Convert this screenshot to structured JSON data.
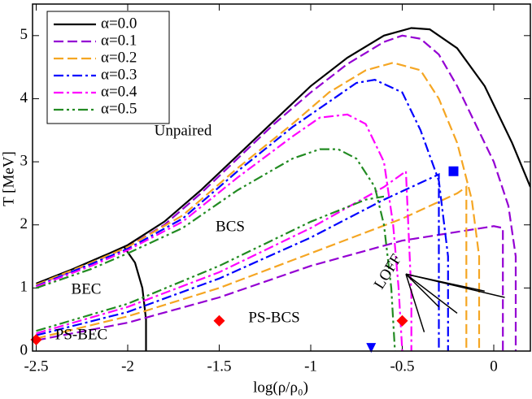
{
  "chart_data": {
    "type": "line",
    "x_label": "log(ρ/ρ₀)",
    "y_label": "T [MeV]",
    "xlim": [
      -2.52,
      0.2
    ],
    "ylim": [
      0,
      5.5
    ],
    "xticks": [
      -2.5,
      -2,
      -1.5,
      -1,
      -0.5,
      0
    ],
    "yticks": [
      0,
      1,
      2,
      3,
      4,
      5
    ],
    "legend": "upper left",
    "series": [
      {
        "name": "α=0.0",
        "color": "#000000",
        "style": "solid",
        "x": [
          -2.5,
          -2.3,
          -2.1,
          -2.0,
          -1.8,
          -1.6,
          -1.4,
          -1.2,
          -1.0,
          -0.8,
          -0.6,
          -0.45,
          -0.35,
          -0.2,
          -0.05,
          0.1,
          0.2,
          null,
          -2.02,
          -1.96,
          -1.92,
          -1.9,
          -1.9
        ],
        "values": [
          1.07,
          1.3,
          1.55,
          1.68,
          2.05,
          2.55,
          3.1,
          3.65,
          4.2,
          4.65,
          5.0,
          5.12,
          5.1,
          4.8,
          4.2,
          3.3,
          2.6,
          null,
          1.65,
          1.4,
          1.0,
          0.5,
          0
        ]
      },
      {
        "name": "α=0.1",
        "color": "#9400d3",
        "style": "dashed",
        "x": [
          -2.5,
          -2.3,
          -2.1,
          -2.0,
          -1.8,
          -1.6,
          -1.4,
          -1.2,
          -1.0,
          -0.8,
          -0.6,
          -0.5,
          -0.4,
          -0.3,
          -0.2,
          -0.1,
          0.0,
          0.08,
          0.12,
          0.12,
          null,
          -2.5,
          -2.0,
          -1.5,
          -1.0,
          -0.5,
          0,
          0.05,
          0.05
        ],
        "values": [
          1.05,
          1.27,
          1.52,
          1.65,
          2.0,
          2.5,
          3.05,
          3.6,
          4.1,
          4.55,
          4.9,
          5.0,
          4.95,
          4.7,
          4.2,
          3.6,
          3.0,
          2.3,
          1.5,
          0,
          null,
          0.17,
          0.45,
          0.85,
          1.35,
          1.75,
          1.98,
          1.95,
          0
        ]
      },
      {
        "name": "α=0.2",
        "color": "#f5a623",
        "style": "dashed",
        "x": [
          -2.5,
          -2.2,
          -2.0,
          -1.7,
          -1.4,
          -1.1,
          -0.9,
          -0.7,
          -0.55,
          -0.4,
          -0.3,
          -0.2,
          -0.12,
          -0.08,
          -0.08,
          null,
          -2.5,
          -2.0,
          -1.5,
          -1.0,
          -0.5,
          -0.2,
          -0.15,
          -0.15
        ],
        "values": [
          1.05,
          1.4,
          1.65,
          2.15,
          2.9,
          3.6,
          4.1,
          4.45,
          4.57,
          4.45,
          4.0,
          3.3,
          2.4,
          1.5,
          0,
          null,
          0.2,
          0.55,
          1.0,
          1.55,
          2.1,
          2.5,
          2.6,
          0
        ]
      },
      {
        "name": "α=0.3",
        "color": "#0000ff",
        "style": "dashdot",
        "x": [
          -2.5,
          -2.2,
          -2.0,
          -1.7,
          -1.4,
          -1.1,
          -0.9,
          -0.75,
          -0.65,
          -0.5,
          -0.4,
          -0.3,
          -0.25,
          -0.25,
          null,
          -2.5,
          -2.0,
          -1.5,
          -1.0,
          -0.6,
          -0.3,
          -0.3
        ],
        "values": [
          1.03,
          1.38,
          1.62,
          2.1,
          2.85,
          3.55,
          3.95,
          4.25,
          4.3,
          4.1,
          3.5,
          2.7,
          1.5,
          0,
          null,
          0.25,
          0.62,
          1.15,
          1.8,
          2.4,
          2.8,
          0
        ]
      },
      {
        "name": "α=0.4",
        "color": "#ff00ff",
        "style": "dashdot",
        "x": [
          -2.5,
          -2.2,
          -2.0,
          -1.7,
          -1.4,
          -1.1,
          -0.95,
          -0.8,
          -0.7,
          -0.6,
          -0.55,
          -0.52,
          -0.5,
          null,
          -2.5,
          -2.0,
          -1.5,
          -1.0,
          -0.6,
          -0.48,
          -0.45,
          -0.45
        ],
        "values": [
          1.02,
          1.35,
          1.6,
          2.05,
          2.75,
          3.4,
          3.7,
          3.75,
          3.6,
          3.0,
          2.0,
          1.0,
          0,
          null,
          0.28,
          0.7,
          1.25,
          1.95,
          2.6,
          2.85,
          0.9,
          0
        ]
      },
      {
        "name": "α=0.5",
        "color": "#228b22",
        "style": "dashdotdot",
        "x": [
          -2.5,
          -2.2,
          -2.0,
          -1.7,
          -1.4,
          -1.1,
          -0.95,
          -0.85,
          -0.75,
          -0.65,
          -0.6,
          -0.56,
          -0.54,
          null,
          -2.5,
          -2.0,
          -1.5,
          -1.0,
          -0.7,
          -0.6
        ],
        "values": [
          1.0,
          1.3,
          1.55,
          1.95,
          2.55,
          3.05,
          3.2,
          3.2,
          3.05,
          2.6,
          2.0,
          1.0,
          0,
          null,
          0.32,
          0.75,
          1.35,
          2.05,
          2.4,
          2.45
        ]
      }
    ],
    "markers": [
      {
        "shape": "diamond",
        "color": "#ff0000",
        "x": [
          -2.5,
          -1.5,
          -0.5
        ],
        "values": [
          0.18,
          0.48,
          0.48
        ]
      },
      {
        "shape": "square",
        "color": "#0000ff",
        "x": [
          -0.22
        ],
        "values": [
          2.85
        ]
      },
      {
        "shape": "triangle",
        "color": "#0000ff",
        "x": [
          -0.67
        ],
        "values": [
          0.05
        ]
      }
    ],
    "annotations": [
      "Unpaired",
      "BCS",
      "BEC",
      "PS-BEC",
      "PS-BCS",
      "LOFF"
    ]
  }
}
